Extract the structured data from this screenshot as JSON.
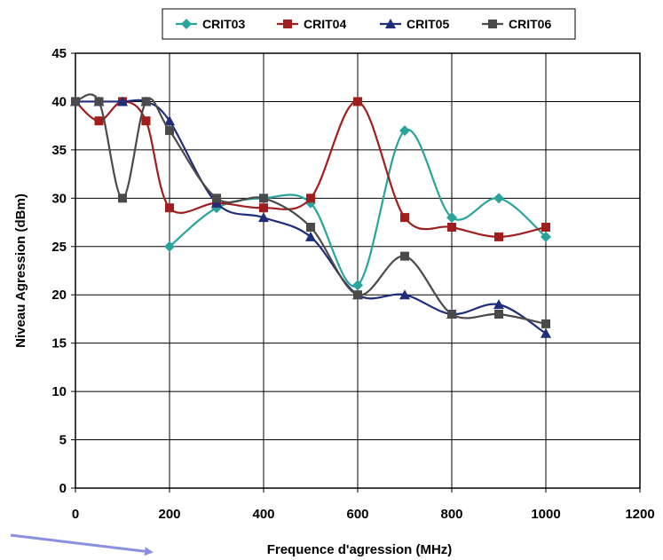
{
  "chart_data": {
    "type": "line",
    "xlabel": "Frequence d'agression (MHz)",
    "ylabel": "Niveau Agression (dBm)",
    "xlim": [
      0,
      1200
    ],
    "ylim": [
      0,
      45
    ],
    "x_ticks": [
      "0",
      "200",
      "400",
      "600",
      "800",
      "1000",
      "1200"
    ],
    "y_ticks": [
      "0",
      "5",
      "10",
      "15",
      "20",
      "25",
      "30",
      "35",
      "40",
      "45"
    ],
    "grid": true,
    "legend_position": "top",
    "series": [
      {
        "name": "CRIT03",
        "color": "#2aa39b",
        "marker": "diamond",
        "points": [
          [
            200,
            25
          ],
          [
            300,
            29
          ],
          [
            400,
            30
          ],
          [
            500,
            29.5
          ],
          [
            600,
            21
          ],
          [
            700,
            37
          ],
          [
            800,
            28
          ],
          [
            900,
            30
          ],
          [
            1000,
            26
          ]
        ]
      },
      {
        "name": "CRIT04",
        "color": "#a01e1e",
        "marker": "square",
        "points": [
          [
            0,
            40
          ],
          [
            50,
            38
          ],
          [
            100,
            40
          ],
          [
            150,
            38
          ],
          [
            200,
            29
          ],
          [
            300,
            29.5
          ],
          [
            400,
            29
          ],
          [
            500,
            30
          ],
          [
            600,
            40
          ],
          [
            700,
            28
          ],
          [
            800,
            27
          ],
          [
            900,
            26
          ],
          [
            1000,
            27
          ]
        ]
      },
      {
        "name": "CRIT05",
        "color": "#1f2d7a",
        "marker": "triangle",
        "points": [
          [
            0,
            40
          ],
          [
            50,
            40
          ],
          [
            100,
            40
          ],
          [
            150,
            40
          ],
          [
            200,
            38
          ],
          [
            300,
            29.5
          ],
          [
            400,
            28
          ],
          [
            500,
            26
          ],
          [
            600,
            20
          ],
          [
            700,
            20
          ],
          [
            800,
            18
          ],
          [
            900,
            19
          ],
          [
            1000,
            16
          ]
        ]
      },
      {
        "name": "CRIT06",
        "color": "#4a4a4a",
        "marker": "square",
        "points": [
          [
            0,
            40
          ],
          [
            50,
            40
          ],
          [
            100,
            30
          ],
          [
            150,
            40
          ],
          [
            200,
            37
          ],
          [
            300,
            30
          ],
          [
            400,
            30
          ],
          [
            500,
            27
          ],
          [
            600,
            20
          ],
          [
            700,
            24
          ],
          [
            800,
            18
          ],
          [
            900,
            18
          ],
          [
            1000,
            17
          ]
        ]
      }
    ]
  }
}
